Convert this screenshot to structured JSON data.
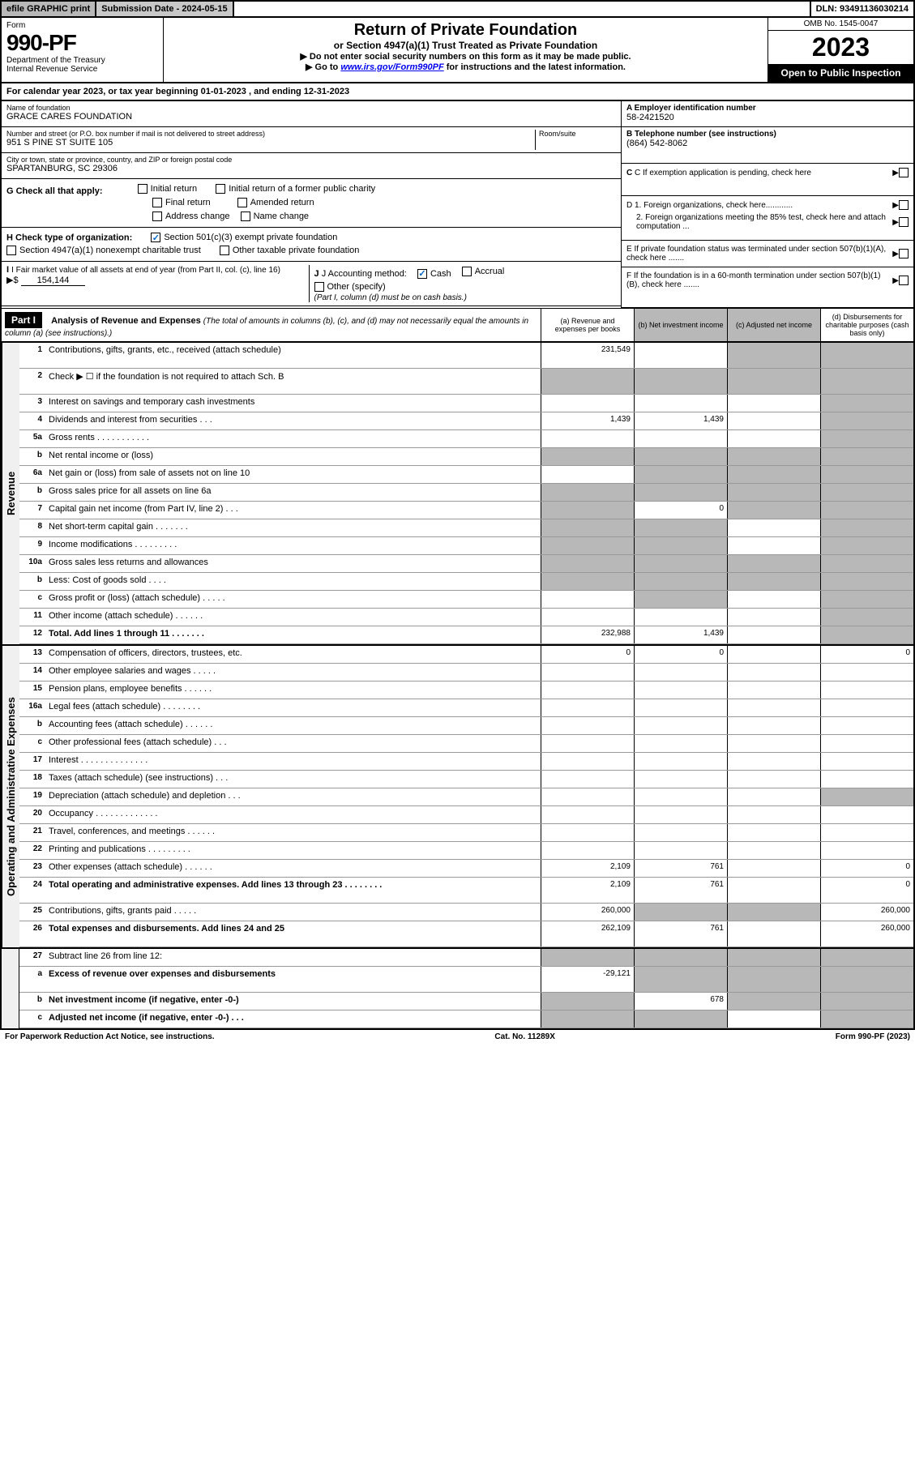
{
  "top_bar": {
    "efile": "efile GRAPHIC print",
    "sub_date": "Submission Date - 2024-05-15",
    "dln": "DLN: 93491136030214"
  },
  "header": {
    "form_label": "Form",
    "form_number": "990-PF",
    "dept1": "Department of the Treasury",
    "dept2": "Internal Revenue Service",
    "title": "Return of Private Foundation",
    "subtitle": "or Section 4947(a)(1) Trust Treated as Private Foundation",
    "note1": "▶ Do not enter social security numbers on this form as it may be made public.",
    "note2": "▶ Go to www.irs.gov/Form990PF for instructions and the latest information.",
    "omb": "OMB No. 1545-0047",
    "year": "2023",
    "open_public": "Open to Public Inspection"
  },
  "calendar_row": "For calendar year 2023, or tax year beginning 01-01-2023                               , and ending 12-31-2023",
  "foundation": {
    "name_label": "Name of foundation",
    "name": "GRACE CARES FOUNDATION",
    "addr_label": "Number and street (or P.O. box number if mail is not delivered to street address)",
    "addr": "951 S PINE ST SUITE 105",
    "room_label": "Room/suite",
    "city_label": "City or town, state or province, country, and ZIP or foreign postal code",
    "city": "SPARTANBURG, SC  29306"
  },
  "right_info": {
    "a_label": "A Employer identification number",
    "a_value": "58-2421520",
    "b_label": "B Telephone number (see instructions)",
    "b_value": "(864) 542-8062",
    "c_label": "C If exemption application is pending, check here",
    "d1_label": "D 1. Foreign organizations, check here............",
    "d2_label": "2. Foreign organizations meeting the 85% test, check here and attach computation ...",
    "e_label": "E  If private foundation status was terminated under section 507(b)(1)(A), check here .......",
    "f_label": "F  If the foundation is in a 60-month termination under section 507(b)(1)(B), check here .......",
    "arrow": "▶"
  },
  "section_g": {
    "label": "G Check all that apply:",
    "opts": [
      "Initial return",
      "Initial return of a former public charity",
      "Final return",
      "Amended return",
      "Address change",
      "Name change"
    ]
  },
  "section_h": {
    "label": "H Check type of organization:",
    "opt1": "Section 501(c)(3) exempt private foundation",
    "opt2": "Section 4947(a)(1) nonexempt charitable trust",
    "opt3": "Other taxable private foundation"
  },
  "section_i": {
    "label": "I Fair market value of all assets at end of year (from Part II, col. (c), line 16)",
    "value": "154,144",
    "arrow": "▶$"
  },
  "section_j": {
    "label": "J Accounting method:",
    "cash": "Cash",
    "accrual": "Accrual",
    "other": "Other (specify)",
    "note": "(Part I, column (d) must be on cash basis.)"
  },
  "part1": {
    "badge": "Part I",
    "title": "Analysis of Revenue and Expenses",
    "desc": "(The total of amounts in columns (b), (c), and (d) may not necessarily equal the amounts in column (a) (see instructions).)",
    "col_a": "(a)   Revenue and expenses per books",
    "col_b": "(b)   Net investment income",
    "col_c": "(c)   Adjusted net income",
    "col_d": "(d)  Disbursements for charitable purposes (cash basis only)"
  },
  "side_labels": {
    "revenue": "Revenue",
    "expenses": "Operating and Administrative Expenses"
  },
  "rows": [
    {
      "num": "1",
      "label": "Contributions, gifts, grants, etc., received (attach schedule)",
      "a": "231,549",
      "b": "",
      "c": "gray",
      "d": "gray",
      "tall": true
    },
    {
      "num": "2",
      "label": "Check ▶ ☐ if the foundation is not required to attach Sch. B",
      "nocells": true,
      "tall": true
    },
    {
      "num": "3",
      "label": "Interest on savings and temporary cash investments",
      "a": "",
      "b": "",
      "c": "",
      "d": "gray"
    },
    {
      "num": "4",
      "label": "Dividends and interest from securities   .   .   .",
      "a": "1,439",
      "b": "1,439",
      "c": "",
      "d": "gray"
    },
    {
      "num": "5a",
      "label": "Gross rents   .   .   .   .   .   .   .   .   .   .   .",
      "a": "",
      "b": "",
      "c": "",
      "d": "gray"
    },
    {
      "num": "b",
      "label": "Net rental income or (loss)",
      "nocells": true
    },
    {
      "num": "6a",
      "label": "Net gain or (loss) from sale of assets not on line 10",
      "a": "",
      "b": "gray",
      "c": "gray",
      "d": "gray"
    },
    {
      "num": "b",
      "label": "Gross sales price for all assets on line 6a",
      "nocells": true
    },
    {
      "num": "7",
      "label": "Capital gain net income (from Part IV, line 2)   .   .   .",
      "a": "gray",
      "b": "0",
      "c": "gray",
      "d": "gray"
    },
    {
      "num": "8",
      "label": "Net short-term capital gain   .   .   .   .   .   .   .",
      "a": "gray",
      "b": "gray",
      "c": "",
      "d": "gray"
    },
    {
      "num": "9",
      "label": "Income modifications   .   .   .   .   .   .   .   .   .",
      "a": "gray",
      "b": "gray",
      "c": "",
      "d": "gray"
    },
    {
      "num": "10a",
      "label": "Gross sales less returns and allowances",
      "nocells": true
    },
    {
      "num": "b",
      "label": "Less: Cost of goods sold   .   .   .   .",
      "nocells": true
    },
    {
      "num": "c",
      "label": "Gross profit or (loss) (attach schedule)   .   .   .   .   .",
      "a": "",
      "b": "gray",
      "c": "",
      "d": "gray"
    },
    {
      "num": "11",
      "label": "Other income (attach schedule)   .   .   .   .   .   .",
      "a": "",
      "b": "",
      "c": "",
      "d": "gray"
    },
    {
      "num": "12",
      "label": "Total. Add lines 1 through 11   .   .   .   .   .   .   .",
      "bold": true,
      "a": "232,988",
      "b": "1,439",
      "c": "",
      "d": "gray"
    }
  ],
  "exp_rows": [
    {
      "num": "13",
      "label": "Compensation of officers, directors, trustees, etc.",
      "a": "0",
      "b": "0",
      "c": "",
      "d": "0"
    },
    {
      "num": "14",
      "label": "Other employee salaries and wages   .   .   .   .   .",
      "a": "",
      "b": "",
      "c": "",
      "d": ""
    },
    {
      "num": "15",
      "label": "Pension plans, employee benefits   .   .   .   .   .   .",
      "a": "",
      "b": "",
      "c": "",
      "d": ""
    },
    {
      "num": "16a",
      "label": "Legal fees (attach schedule)   .   .   .   .   .   .   .   .",
      "a": "",
      "b": "",
      "c": "",
      "d": ""
    },
    {
      "num": "b",
      "label": "Accounting fees (attach schedule)   .   .   .   .   .   .",
      "a": "",
      "b": "",
      "c": "",
      "d": ""
    },
    {
      "num": "c",
      "label": "Other professional fees (attach schedule)   .   .   .",
      "a": "",
      "b": "",
      "c": "",
      "d": ""
    },
    {
      "num": "17",
      "label": "Interest   .   .   .   .   .   .   .   .   .   .   .   .   .   .",
      "a": "",
      "b": "",
      "c": "",
      "d": ""
    },
    {
      "num": "18",
      "label": "Taxes (attach schedule) (see instructions)   .   .   .",
      "a": "",
      "b": "",
      "c": "",
      "d": ""
    },
    {
      "num": "19",
      "label": "Depreciation (attach schedule) and depletion   .   .   .",
      "a": "",
      "b": "",
      "c": "",
      "d": "gray"
    },
    {
      "num": "20",
      "label": "Occupancy   .   .   .   .   .   .   .   .   .   .   .   .   .",
      "a": "",
      "b": "",
      "c": "",
      "d": ""
    },
    {
      "num": "21",
      "label": "Travel, conferences, and meetings   .   .   .   .   .   .",
      "a": "",
      "b": "",
      "c": "",
      "d": ""
    },
    {
      "num": "22",
      "label": "Printing and publications   .   .   .   .   .   .   .   .   .",
      "a": "",
      "b": "",
      "c": "",
      "d": ""
    },
    {
      "num": "23",
      "label": "Other expenses (attach schedule)   .   .   .   .   .   .",
      "a": "2,109",
      "b": "761",
      "c": "",
      "d": "0"
    },
    {
      "num": "24",
      "label": "Total operating and administrative expenses. Add lines 13 through 23   .   .   .   .   .   .   .   .",
      "bold": true,
      "a": "2,109",
      "b": "761",
      "c": "",
      "d": "0",
      "tall": true
    },
    {
      "num": "25",
      "label": "Contributions, gifts, grants paid   .   .   .   .   .",
      "a": "260,000",
      "b": "gray",
      "c": "gray",
      "d": "260,000"
    },
    {
      "num": "26",
      "label": "Total expenses and disbursements. Add lines 24 and 25",
      "bold": true,
      "a": "262,109",
      "b": "761",
      "c": "",
      "d": "260,000",
      "tall": true
    }
  ],
  "final_rows": [
    {
      "num": "27",
      "label": "Subtract line 26 from line 12:",
      "a": "gray",
      "b": "gray",
      "c": "gray",
      "d": "gray"
    },
    {
      "num": "a",
      "label": "Excess of revenue over expenses and disbursements",
      "bold": true,
      "a": "-29,121",
      "b": "gray",
      "c": "gray",
      "d": "gray",
      "tall": true
    },
    {
      "num": "b",
      "label": "Net investment income (if negative, enter -0-)",
      "bold": true,
      "a": "gray",
      "b": "678",
      "c": "gray",
      "d": "gray"
    },
    {
      "num": "c",
      "label": "Adjusted net income (if negative, enter -0-)   .   .   .",
      "bold": true,
      "a": "gray",
      "b": "gray",
      "c": "",
      "d": "gray"
    }
  ],
  "footer": {
    "left": "For Paperwork Reduction Act Notice, see instructions.",
    "center": "Cat. No. 11289X",
    "right": "Form 990-PF (2023)"
  }
}
